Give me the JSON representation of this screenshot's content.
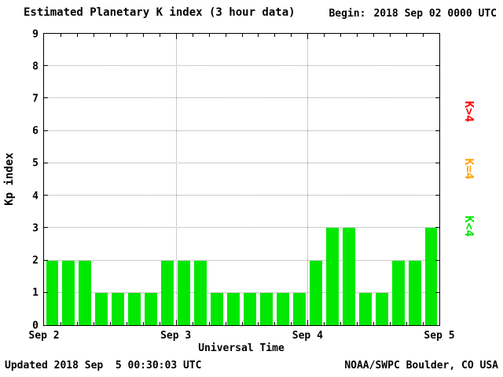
{
  "header": {
    "title": "Estimated Planetary K index (3 hour data)",
    "begin_label": "Begin:",
    "begin_value": "2018 Sep 02 0000 UTC"
  },
  "footer": {
    "updated": "Updated 2018 Sep  5 00:30:03 UTC",
    "source": "NOAA/SWPC Boulder, CO USA"
  },
  "chart_data": {
    "type": "bar",
    "title": "Estimated Planetary K index (3 hour data)",
    "xlabel": "Universal Time",
    "ylabel": "Kp index",
    "ylim": [
      0,
      9
    ],
    "x_tick_labels": [
      "Sep 2",
      "Sep 3",
      "Sep 4",
      "Sep 5"
    ],
    "bar_interval_hours": 3,
    "values": [
      2,
      2,
      2,
      1,
      1,
      1,
      1,
      2,
      2,
      2,
      1,
      1,
      1,
      1,
      1,
      1,
      2,
      3,
      3,
      1,
      1,
      2,
      2,
      3
    ],
    "grid": true,
    "legend": [
      {
        "label": "K>4",
        "color": "#ff0000"
      },
      {
        "label": "K=4",
        "color": "#ffa500"
      },
      {
        "label": "K<4",
        "color": "#00e800"
      }
    ],
    "colors": {
      "bar_low": "#00e800",
      "bar_mid": "#ffa500",
      "bar_high": "#ff0000",
      "grid": "#999999",
      "axis": "#000000"
    }
  }
}
